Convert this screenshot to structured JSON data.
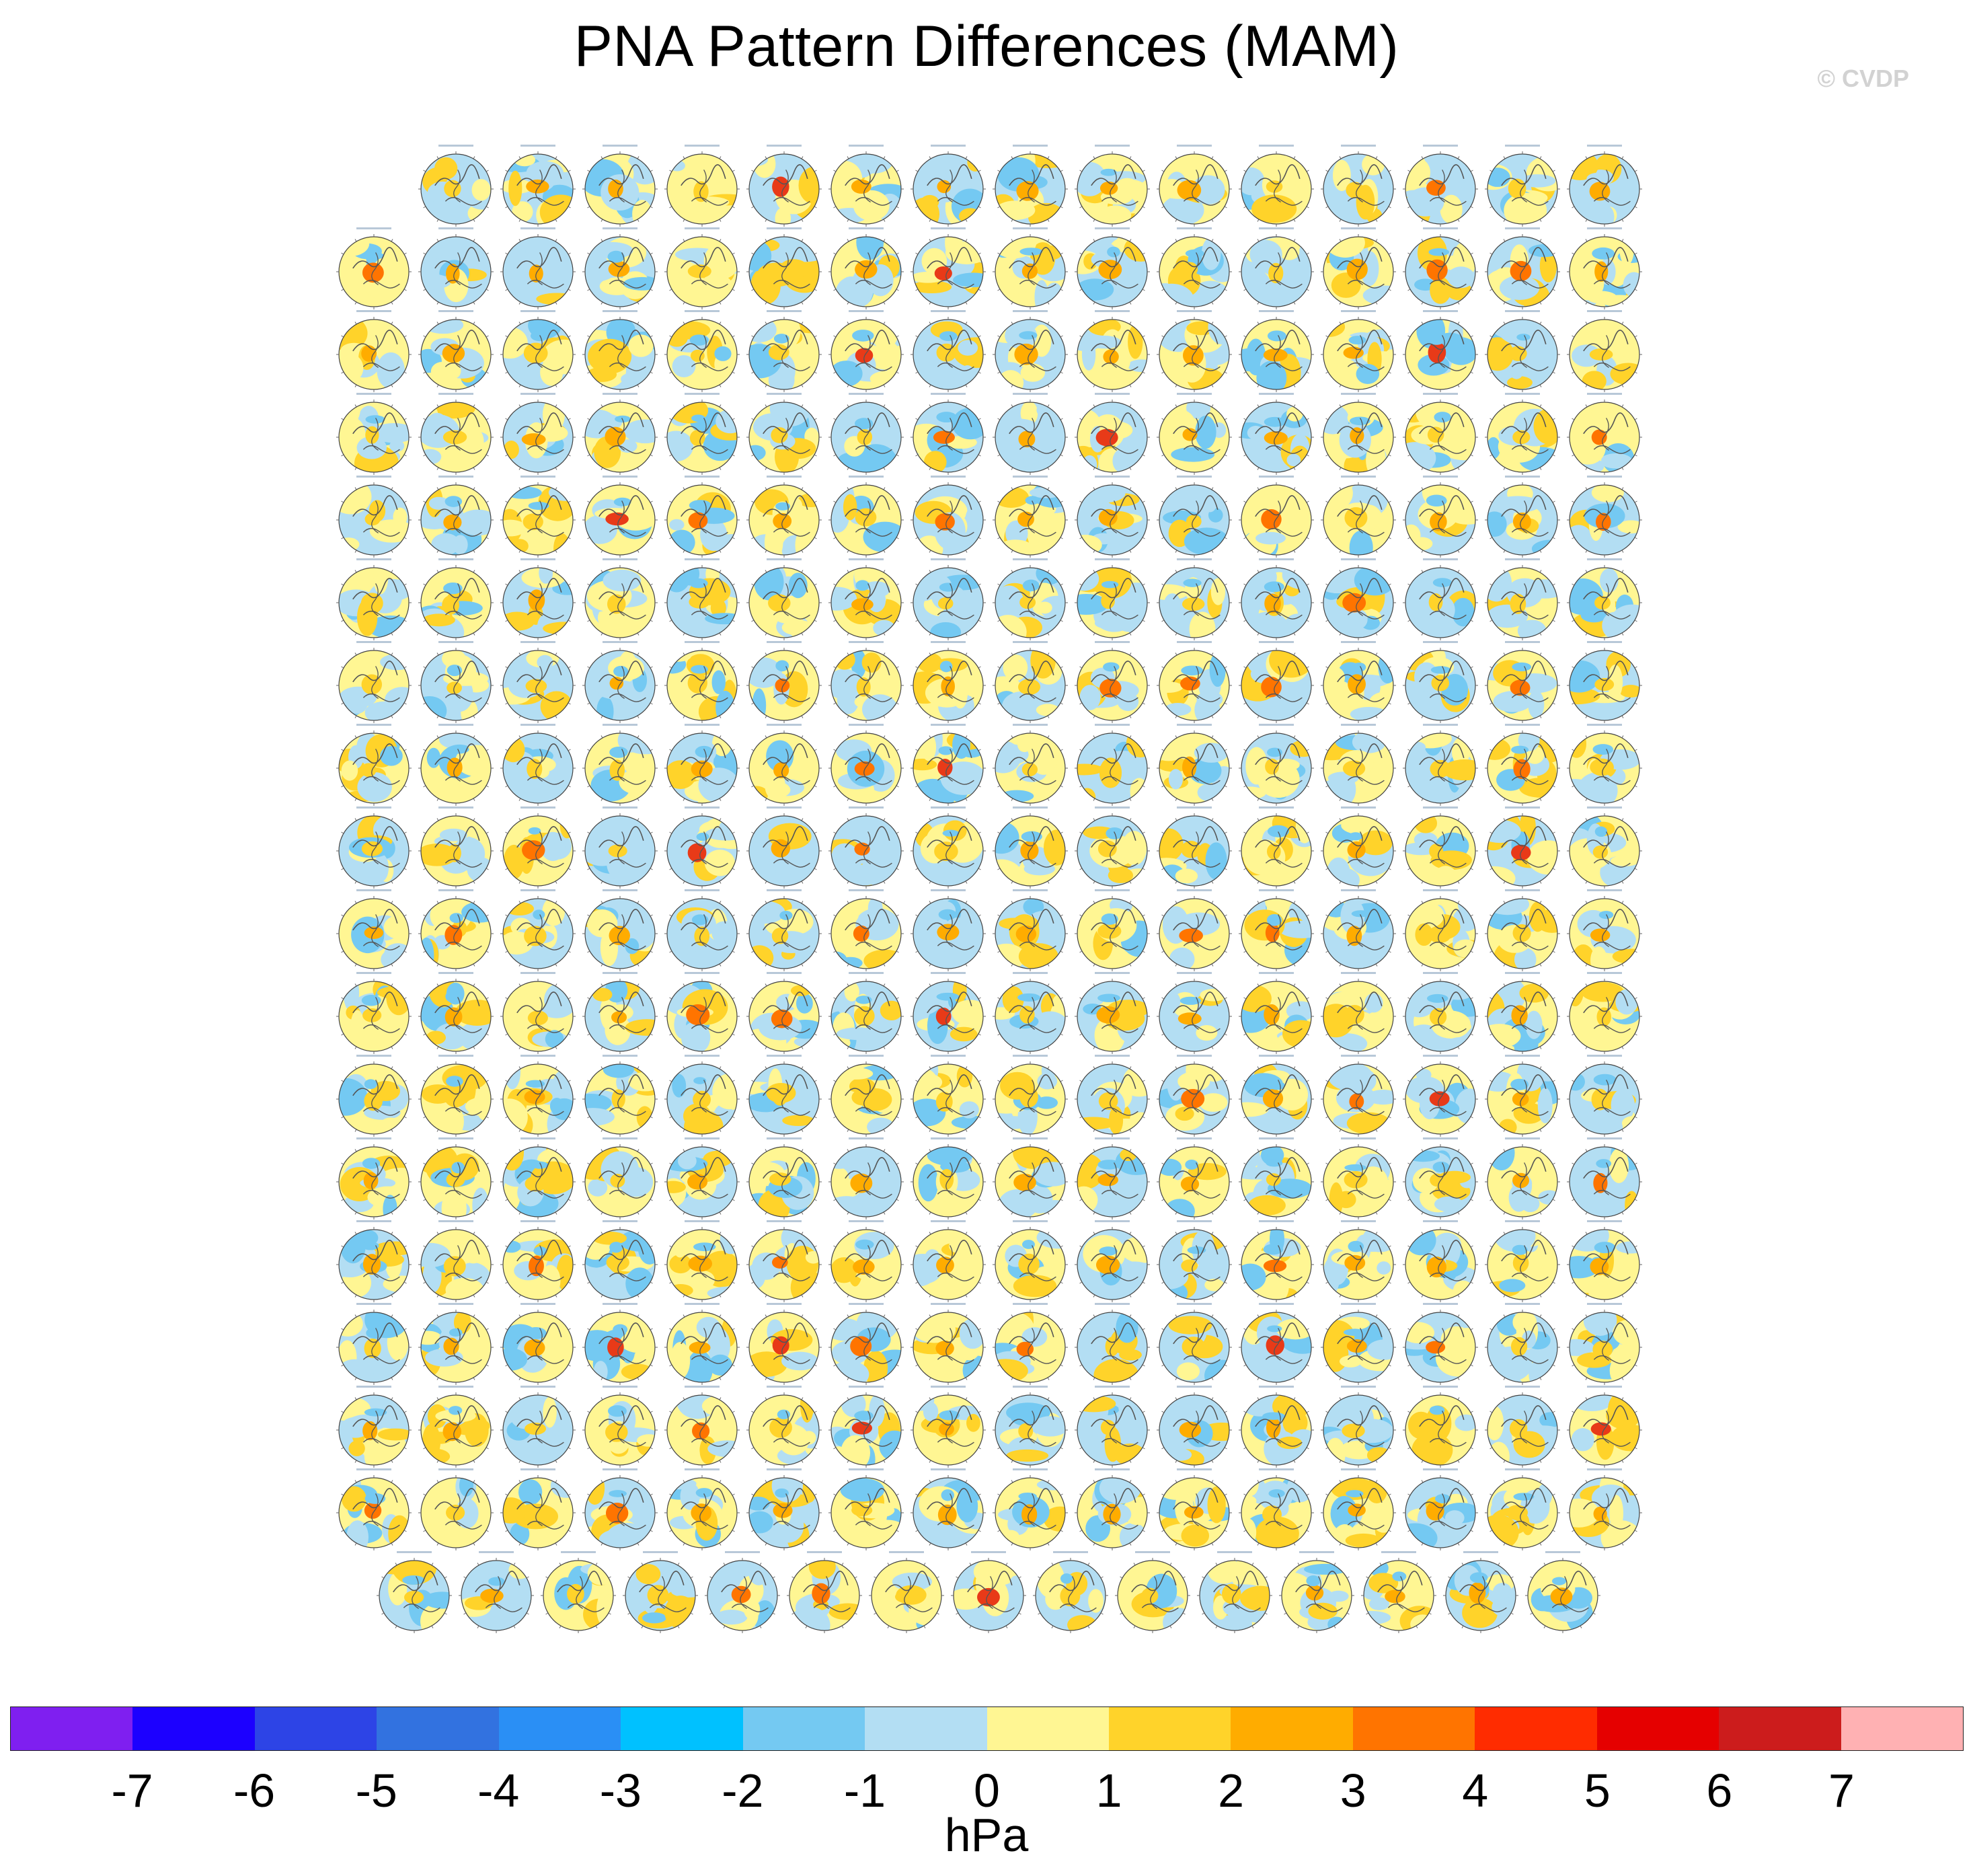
{
  "figure": {
    "title": "PNA Pattern Differences (MAM)",
    "watermark": "© CVDP"
  },
  "chart_data": {
    "type": "heatmap",
    "title": "PNA Pattern Differences (MAM)",
    "description_units": "hPa",
    "projection": "north-polar-stereographic",
    "panel_grid": {
      "row_counts": [
        15,
        16,
        16,
        16,
        16,
        16,
        16,
        16,
        16,
        16,
        16,
        16,
        16,
        16,
        16,
        16,
        16,
        15
      ],
      "total_panels": 286
    },
    "colorbar": {
      "label": "hPa",
      "tick_labels": [
        "-7",
        "-6",
        "-5",
        "-4",
        "-3",
        "-2",
        "-1",
        "0",
        "1",
        "2",
        "3",
        "4",
        "5",
        "6",
        "7"
      ],
      "levels": [
        -7,
        -6,
        -5,
        -4,
        -3,
        -2,
        -1,
        0,
        1,
        2,
        3,
        4,
        5,
        6,
        7
      ],
      "colors": [
        "#7f1ff0",
        "#1c00ff",
        "#2d44e6",
        "#3272e0",
        "#2a8ff5",
        "#00c1ff",
        "#74c9f2",
        "#b3def3",
        "#fff693",
        "#ffd32a",
        "#ffac00",
        "#ff7400",
        "#ff2c00",
        "#e50000",
        "#cc1c1c",
        "#ffb1b3"
      ],
      "orientation": "horizontal"
    }
  }
}
